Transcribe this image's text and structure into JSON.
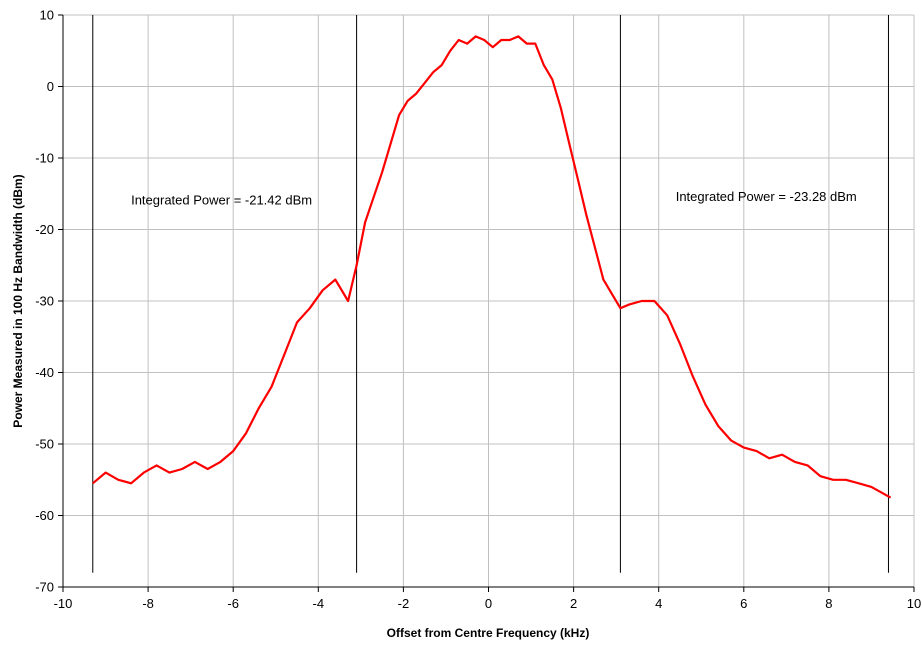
{
  "chart_data": {
    "type": "line",
    "title": "",
    "xlabel": "Offset from Centre Frequency (kHz)",
    "ylabel": "Power Measured in 100 Hz Bandwidth (dBm)",
    "xlim": [
      -10,
      10
    ],
    "ylim": [
      -70,
      10
    ],
    "x_ticks": [
      -10,
      -8,
      -6,
      -4,
      -2,
      0,
      2,
      4,
      6,
      8,
      10
    ],
    "x_tick_labels": [
      "-10",
      "-8",
      "-6",
      "-4",
      "-2",
      "0",
      "2",
      "4",
      "6",
      "8",
      "10"
    ],
    "y_ticks": [
      -70,
      -60,
      -50,
      -40,
      -30,
      -20,
      -10,
      0,
      10
    ],
    "y_tick_labels": [
      "-70",
      "-60",
      "-50",
      "-40",
      "-30",
      "-20",
      "-10",
      "0",
      "10"
    ],
    "grid": true,
    "grid_color": "#c0c0c0",
    "series": [
      {
        "color": "#ff0000",
        "x": [
          -9.3,
          -9.0,
          -8.7,
          -8.4,
          -8.1,
          -7.8,
          -7.5,
          -7.2,
          -6.9,
          -6.6,
          -6.3,
          -6.0,
          -5.7,
          -5.4,
          -5.1,
          -4.8,
          -4.5,
          -4.2,
          -3.9,
          -3.6,
          -3.3,
          -3.1,
          -2.9,
          -2.7,
          -2.5,
          -2.3,
          -2.1,
          -1.9,
          -1.7,
          -1.5,
          -1.3,
          -1.1,
          -0.9,
          -0.7,
          -0.5,
          -0.3,
          -0.1,
          0.1,
          0.3,
          0.5,
          0.7,
          0.9,
          1.1,
          1.3,
          1.5,
          1.7,
          1.9,
          2.1,
          2.3,
          2.5,
          2.7,
          2.9,
          3.1,
          3.3,
          3.6,
          3.9,
          4.2,
          4.5,
          4.8,
          5.1,
          5.4,
          5.7,
          6.0,
          6.3,
          6.6,
          6.9,
          7.2,
          7.5,
          7.8,
          8.1,
          8.4,
          8.7,
          9.0,
          9.3,
          9.45
        ],
        "y": [
          -55.5,
          -54.0,
          -55.0,
          -55.5,
          -54.0,
          -53.0,
          -54.0,
          -53.5,
          -52.5,
          -53.5,
          -52.5,
          -51.0,
          -48.5,
          -45.0,
          -42.0,
          -37.5,
          -33.0,
          -31.0,
          -28.5,
          -27.0,
          -30.0,
          -25.0,
          -19.0,
          -15.5,
          -12.0,
          -8.0,
          -4.0,
          -2.0,
          -1.0,
          0.5,
          2.0,
          3.0,
          5.0,
          6.5,
          6.0,
          7.0,
          6.5,
          5.5,
          6.5,
          6.5,
          7.0,
          6.0,
          6.0,
          3.0,
          1.0,
          -3.0,
          -8.0,
          -13.0,
          -18.0,
          -22.5,
          -27.0,
          -29.0,
          -31.0,
          -30.5,
          -30.0,
          -30.0,
          -32.0,
          -36.0,
          -40.5,
          -44.5,
          -47.5,
          -49.5,
          -50.5,
          -51.0,
          -52.0,
          -51.5,
          -52.5,
          -53.0,
          -54.5,
          -55.0,
          -55.0,
          -55.5,
          -56.0,
          -57.0,
          -57.5
        ]
      }
    ],
    "vertical_markers": [
      -9.3,
      -3.1,
      3.1,
      9.4
    ],
    "marker_ymin": -68,
    "annotations": [
      {
        "text": "Integrated Power = -21.42 dBm",
        "x": -8.4,
        "y": -16.5
      },
      {
        "text": "Integrated Power = -23.28 dBm",
        "x": 4.4,
        "y": -16.0
      }
    ]
  }
}
